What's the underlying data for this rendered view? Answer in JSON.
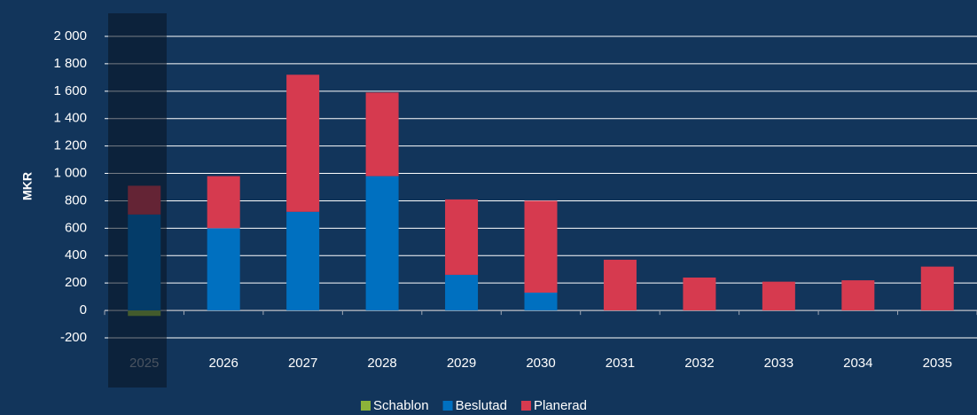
{
  "chart_data": {
    "type": "stacked_bar",
    "y_label": "MKR",
    "categories": [
      "2025",
      "2026",
      "2027",
      "2028",
      "2029",
      "2030",
      "2031",
      "2032",
      "2033",
      "2034",
      "2035"
    ],
    "series": [
      {
        "name": "Schablon",
        "color": "#8db33a",
        "values": [
          -40,
          0,
          0,
          0,
          0,
          0,
          0,
          0,
          0,
          0,
          0
        ]
      },
      {
        "name": "Beslutad",
        "color": "#0070c0",
        "values": [
          700,
          600,
          720,
          980,
          260,
          130,
          0,
          0,
          0,
          0,
          0
        ]
      },
      {
        "name": "Planerad",
        "color": "#d63a4f",
        "values": [
          210,
          380,
          1000,
          610,
          550,
          670,
          370,
          240,
          210,
          220,
          320
        ]
      }
    ],
    "ylim": [
      -200,
      2000
    ],
    "yticks": [
      {
        "value": -200,
        "label": "-200"
      },
      0,
      200,
      400,
      600,
      800,
      {
        "value": 1000,
        "label": "1 000"
      },
      {
        "value": 1200,
        "label": "1 200"
      },
      {
        "value": 1400,
        "label": "1 400"
      },
      {
        "value": 1600,
        "label": "1 600"
      },
      {
        "value": 1800,
        "label": "1 800"
      },
      {
        "value": 2000,
        "label": "2 000"
      }
    ],
    "grid": true,
    "legend": "bottom"
  }
}
